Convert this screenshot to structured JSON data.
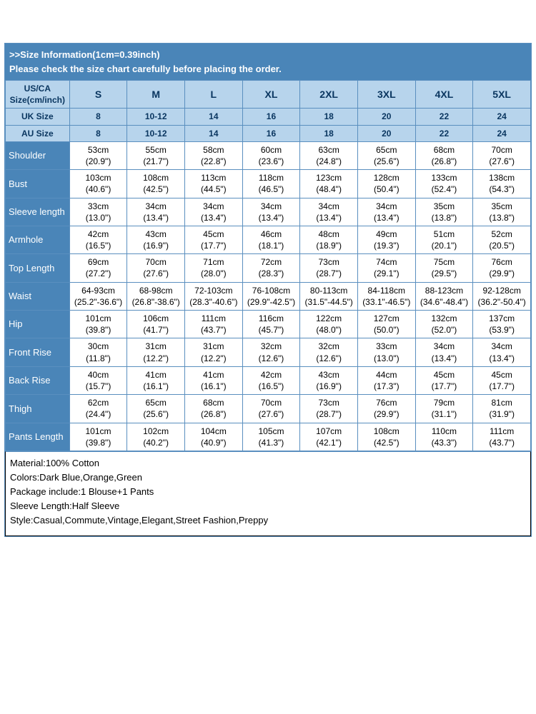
{
  "colors": {
    "banner_bg": "#4a85b8",
    "header_bg": "#b7d4ec",
    "rowlabel_bg": "#4a85b8",
    "border": "#5a8fbf",
    "text_white": "#ffffff",
    "text_dark": "#0a3660"
  },
  "banner": {
    "line1": ">>Size Information(1cm=0.39inch)",
    "line2": "Please check the size chart carefully before placing the order."
  },
  "headers": {
    "corner_line1": "US/CA",
    "corner_line2": "Size(cm/inch)",
    "sizes": [
      "S",
      "M",
      "L",
      "XL",
      "2XL",
      "3XL",
      "4XL",
      "5XL"
    ],
    "uk_label": "UK Size",
    "uk": [
      "8",
      "10-12",
      "14",
      "16",
      "18",
      "20",
      "22",
      "24"
    ],
    "au_label": "AU Size",
    "au": [
      "8",
      "10-12",
      "14",
      "16",
      "18",
      "20",
      "22",
      "24"
    ]
  },
  "rows": [
    {
      "label": "Shoulder",
      "cm": [
        "53cm",
        "55cm",
        "58cm",
        "60cm",
        "63cm",
        "65cm",
        "68cm",
        "70cm"
      ],
      "in": [
        "(20.9\")",
        "(21.7\")",
        "(22.8\")",
        "(23.6\")",
        "(24.8\")",
        "(25.6\")",
        "(26.8\")",
        "(27.6\")"
      ]
    },
    {
      "label": "Bust",
      "cm": [
        "103cm",
        "108cm",
        "113cm",
        "118cm",
        "123cm",
        "128cm",
        "133cm",
        "138cm"
      ],
      "in": [
        "(40.6\")",
        "(42.5\")",
        "(44.5\")",
        "(46.5\")",
        "(48.4\")",
        "(50.4\")",
        "(52.4\")",
        "(54.3\")"
      ]
    },
    {
      "label": "Sleeve length",
      "cm": [
        "33cm",
        "34cm",
        "34cm",
        "34cm",
        "34cm",
        "34cm",
        "35cm",
        "35cm"
      ],
      "in": [
        "(13.0\")",
        "(13.4\")",
        "(13.4\")",
        "(13.4\")",
        "(13.4\")",
        "(13.4\")",
        "(13.8\")",
        "(13.8\")"
      ]
    },
    {
      "label": "Armhole",
      "cm": [
        "42cm",
        "43cm",
        "45cm",
        "46cm",
        "48cm",
        "49cm",
        "51cm",
        "52cm"
      ],
      "in": [
        "(16.5\")",
        "(16.9\")",
        "(17.7\")",
        "(18.1\")",
        "(18.9\")",
        "(19.3\")",
        "(20.1\")",
        "(20.5\")"
      ]
    },
    {
      "label": "Top Length",
      "cm": [
        "69cm",
        "70cm",
        "71cm",
        "72cm",
        "73cm",
        "74cm",
        "75cm",
        "76cm"
      ],
      "in": [
        "(27.2\")",
        "(27.6\")",
        "(28.0\")",
        "(28.3\")",
        "(28.7\")",
        "(29.1\")",
        "(29.5\")",
        "(29.9\")"
      ]
    },
    {
      "label": "Waist",
      "cm": [
        "64-93cm",
        "68-98cm",
        "72-103cm",
        "76-108cm",
        "80-113cm",
        "84-118cm",
        "88-123cm",
        "92-128cm"
      ],
      "in": [
        "(25.2\"-36.6\")",
        "(26.8\"-38.6\")",
        "(28.3\"-40.6\")",
        "(29.9\"-42.5\")",
        "(31.5\"-44.5\")",
        "(33.1\"-46.5\")",
        "(34.6\"-48.4\")",
        "(36.2\"-50.4\")"
      ]
    },
    {
      "label": "Hip",
      "cm": [
        "101cm",
        "106cm",
        "111cm",
        "116cm",
        "122cm",
        "127cm",
        "132cm",
        "137cm"
      ],
      "in": [
        "(39.8\")",
        "(41.7\")",
        "(43.7\")",
        "(45.7\")",
        "(48.0\")",
        "(50.0\")",
        "(52.0\")",
        "(53.9\")"
      ]
    },
    {
      "label": "Front Rise",
      "cm": [
        "30cm",
        "31cm",
        "31cm",
        "32cm",
        "32cm",
        "33cm",
        "34cm",
        "34cm"
      ],
      "in": [
        "(11.8\")",
        "(12.2\")",
        "(12.2\")",
        "(12.6\")",
        "(12.6\")",
        "(13.0\")",
        "(13.4\")",
        "(13.4\")"
      ]
    },
    {
      "label": "Back Rise",
      "cm": [
        "40cm",
        "41cm",
        "41cm",
        "42cm",
        "43cm",
        "44cm",
        "45cm",
        "45cm"
      ],
      "in": [
        "(15.7\")",
        "(16.1\")",
        "(16.1\")",
        "(16.5\")",
        "(16.9\")",
        "(17.3\")",
        "(17.7\")",
        "(17.7\")"
      ]
    },
    {
      "label": "Thigh",
      "cm": [
        "62cm",
        "65cm",
        "68cm",
        "70cm",
        "73cm",
        "76cm",
        "79cm",
        "81cm"
      ],
      "in": [
        "(24.4\")",
        "(25.6\")",
        "(26.8\")",
        "(27.6\")",
        "(28.7\")",
        "(29.9\")",
        "(31.1\")",
        "(31.9\")"
      ]
    },
    {
      "label": "Pants Length",
      "cm": [
        "101cm",
        "102cm",
        "104cm",
        "105cm",
        "107cm",
        "108cm",
        "110cm",
        "111cm"
      ],
      "in": [
        "(39.8\")",
        "(40.2\")",
        "(40.9\")",
        "(41.3\")",
        "(42.1\")",
        "(42.5\")",
        "(43.3\")",
        "(43.7\")"
      ]
    }
  ],
  "info": {
    "material": "Material:100% Cotton",
    "colors": "Colors:Dark Blue,Orange,Green",
    "package": "Package include:1 Blouse+1 Pants",
    "sleeve": "Sleeve Length:Half Sleeve",
    "style": "Style:Casual,Commute,Vintage,Elegant,Street Fashion,Preppy"
  }
}
